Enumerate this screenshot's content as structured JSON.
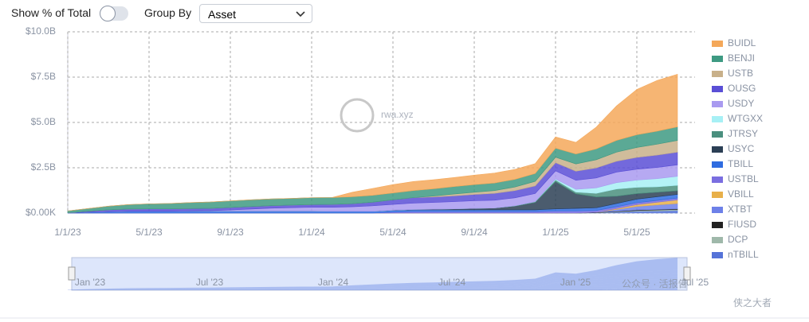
{
  "controls": {
    "toggle_label": "Show % of Total",
    "group_label": "Group By",
    "group_value": "Asset"
  },
  "watermarks": [
    "rwa.xyz",
    "公众号 · 活报告",
    "侠之大者"
  ],
  "chart_data": {
    "type": "stacked_area",
    "x": [
      "1/1/23",
      "2/1/23",
      "3/1/23",
      "4/1/23",
      "5/1/23",
      "6/1/23",
      "7/1/23",
      "8/1/23",
      "9/1/23",
      "10/1/23",
      "11/1/23",
      "12/1/23",
      "1/1/24",
      "2/1/24",
      "3/1/24",
      "4/1/24",
      "5/1/24",
      "6/1/24",
      "7/1/24",
      "8/1/24",
      "9/1/24",
      "10/1/24",
      "11/1/24",
      "12/1/24",
      "1/1/25",
      "2/1/25",
      "3/1/25",
      "4/1/25",
      "5/1/25",
      "6/1/25",
      "7/1/25"
    ],
    "xticks": [
      "1/1/23",
      "5/1/23",
      "9/1/23",
      "1/1/24",
      "5/1/24",
      "9/1/24",
      "1/1/25",
      "5/1/25"
    ],
    "ylim": [
      0,
      10
    ],
    "yticks": [
      {
        "value": 0,
        "label": "$0.00K"
      },
      {
        "value": 2.5,
        "label": "$2.5B"
      },
      {
        "value": 5,
        "label": "$5.0B"
      },
      {
        "value": 7.5,
        "label": "$7.5B"
      },
      {
        "value": 10,
        "label": "$10.0B"
      }
    ],
    "grid": true,
    "legend": "right",
    "navigator_labels": [
      "Jan '23",
      "Jul '23",
      "Jan '24",
      "Jul '24",
      "Jan '25",
      "Jul '25"
    ],
    "series": [
      {
        "name": "BUIDL",
        "color": "#f4a85a",
        "values": [
          0,
          0,
          0,
          0,
          0,
          0,
          0,
          0,
          0,
          0,
          0,
          0,
          0,
          0,
          0.25,
          0.38,
          0.46,
          0.5,
          0.5,
          0.5,
          0.52,
          0.55,
          0.55,
          0.55,
          0.62,
          0.64,
          1.2,
          1.9,
          2.5,
          2.8,
          2.9
        ]
      },
      {
        "name": "BENJI",
        "color": "#3e9a82",
        "values": [
          0.1,
          0.15,
          0.2,
          0.25,
          0.28,
          0.3,
          0.33,
          0.35,
          0.36,
          0.37,
          0.37,
          0.37,
          0.38,
          0.38,
          0.38,
          0.38,
          0.38,
          0.39,
          0.4,
          0.41,
          0.42,
          0.42,
          0.42,
          0.43,
          0.5,
          0.55,
          0.6,
          0.65,
          0.7,
          0.72,
          0.75
        ]
      },
      {
        "name": "USTB",
        "color": "#c8b08a",
        "values": [
          0,
          0,
          0,
          0,
          0,
          0,
          0,
          0,
          0,
          0,
          0,
          0,
          0,
          0,
          0,
          0,
          0,
          0,
          0.05,
          0.1,
          0.12,
          0.15,
          0.2,
          0.25,
          0.3,
          0.4,
          0.45,
          0.5,
          0.55,
          0.6,
          0.65
        ]
      },
      {
        "name": "OUSG",
        "color": "#5a4fd6",
        "values": [
          0,
          0.05,
          0.1,
          0.12,
          0.13,
          0.13,
          0.13,
          0.13,
          0.14,
          0.14,
          0.14,
          0.14,
          0.15,
          0.16,
          0.17,
          0.2,
          0.25,
          0.3,
          0.3,
          0.32,
          0.35,
          0.38,
          0.4,
          0.42,
          0.45,
          0.5,
          0.55,
          0.6,
          0.65,
          0.68,
          0.7
        ]
      },
      {
        "name": "USDY",
        "color": "#a99af0",
        "values": [
          0,
          0,
          0,
          0,
          0,
          0,
          0,
          0.01,
          0.05,
          0.1,
          0.15,
          0.18,
          0.2,
          0.22,
          0.25,
          0.3,
          0.32,
          0.35,
          0.38,
          0.4,
          0.42,
          0.43,
          0.44,
          0.45,
          0.45,
          0.5,
          0.55,
          0.58,
          0.6,
          0.62,
          0.63
        ]
      },
      {
        "name": "WTGXX",
        "color": "#a7f0f5",
        "values": [
          0,
          0,
          0,
          0,
          0,
          0,
          0,
          0,
          0,
          0,
          0,
          0,
          0,
          0,
          0,
          0,
          0,
          0,
          0,
          0,
          0,
          0,
          0,
          0,
          0.05,
          0.15,
          0.3,
          0.35,
          0.4,
          0.45,
          0.5
        ]
      },
      {
        "name": "JTRSY",
        "color": "#4a8f7e",
        "values": [
          0,
          0,
          0,
          0,
          0,
          0,
          0,
          0,
          0,
          0,
          0,
          0,
          0,
          0,
          0,
          0,
          0,
          0,
          0,
          0,
          0,
          0,
          0.02,
          0.05,
          0.1,
          0.1,
          0.2,
          0.4,
          0.35,
          0.3,
          0.3
        ]
      },
      {
        "name": "USYC",
        "color": "#2b3f55",
        "values": [
          0,
          0,
          0,
          0,
          0,
          0,
          0,
          0,
          0,
          0,
          0,
          0,
          0,
          0,
          0,
          0,
          0.01,
          0.02,
          0.03,
          0.05,
          0.08,
          0.1,
          0.2,
          0.4,
          1.5,
          0.8,
          0.6,
          0.4,
          0.3,
          0.25,
          0.2
        ]
      },
      {
        "name": "TBILL",
        "color": "#2f6ce0",
        "values": [
          0.02,
          0.05,
          0.08,
          0.1,
          0.1,
          0.1,
          0.12,
          0.12,
          0.12,
          0.12,
          0.12,
          0.12,
          0.12,
          0.1,
          0.1,
          0.1,
          0.1,
          0.1,
          0.1,
          0.1,
          0.1,
          0.1,
          0.1,
          0.1,
          0.12,
          0.15,
          0.15,
          0.18,
          0.2,
          0.2,
          0.2
        ]
      },
      {
        "name": "USTBL",
        "color": "#7a6ee0",
        "values": [
          0,
          0,
          0,
          0,
          0,
          0,
          0,
          0,
          0,
          0,
          0,
          0,
          0,
          0,
          0,
          0,
          0.05,
          0.08,
          0.08,
          0.08,
          0.08,
          0.08,
          0.08,
          0.08,
          0.1,
          0.1,
          0.1,
          0.1,
          0.1,
          0.1,
          0.1
        ]
      },
      {
        "name": "VBILL",
        "color": "#e8b04a",
        "values": [
          0,
          0,
          0,
          0,
          0,
          0,
          0,
          0,
          0,
          0,
          0,
          0,
          0,
          0,
          0,
          0,
          0,
          0,
          0,
          0,
          0,
          0,
          0,
          0,
          0,
          0,
          0,
          0.05,
          0.1,
          0.15,
          0.2
        ]
      },
      {
        "name": "XTBT",
        "color": "#6d80e8",
        "values": [
          0,
          0,
          0,
          0,
          0,
          0,
          0,
          0,
          0,
          0,
          0,
          0,
          0,
          0,
          0,
          0,
          0,
          0,
          0,
          0,
          0,
          0,
          0,
          0,
          0,
          0,
          0,
          0.1,
          0.2,
          0.25,
          0.3
        ]
      },
      {
        "name": "FIUSD",
        "color": "#222222",
        "values": [
          0,
          0,
          0,
          0,
          0,
          0,
          0,
          0,
          0,
          0,
          0,
          0,
          0,
          0,
          0,
          0,
          0,
          0,
          0,
          0,
          0,
          0,
          0,
          0,
          0.01,
          0.01,
          0.02,
          0.02,
          0.03,
          0.03,
          0.03
        ]
      },
      {
        "name": "DCP",
        "color": "#9fb8aa",
        "values": [
          0,
          0,
          0,
          0,
          0,
          0,
          0,
          0,
          0,
          0,
          0,
          0,
          0,
          0,
          0,
          0,
          0,
          0,
          0,
          0,
          0,
          0,
          0,
          0,
          0,
          0,
          0.02,
          0.03,
          0.04,
          0.05,
          0.05
        ]
      },
      {
        "name": "nTBILL",
        "color": "#5573d8",
        "values": [
          0,
          0,
          0,
          0,
          0,
          0,
          0,
          0,
          0,
          0,
          0,
          0,
          0,
          0,
          0,
          0,
          0,
          0,
          0,
          0,
          0,
          0,
          0,
          0,
          0,
          0,
          0,
          0.05,
          0.1,
          0.12,
          0.15
        ]
      }
    ]
  }
}
